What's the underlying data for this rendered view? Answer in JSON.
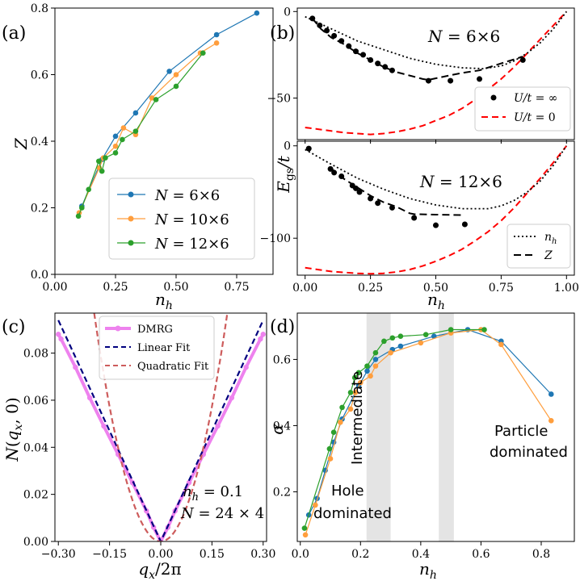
{
  "panel_labels": {
    "a": "(a)",
    "b": "(b)",
    "c": "(c)",
    "d": "(d)"
  },
  "colors": {
    "blue": "#1f77b4",
    "orange": "#ff9e3d",
    "green": "#2ca02c",
    "magenta": "#ee82ee",
    "navy": "#00007f",
    "indianred": "#cd5c5c",
    "red": "#ff0000",
    "shade": "#e4e4e4"
  },
  "chart_data": [
    {
      "id": "a",
      "type": "line",
      "xlabel": "n_h",
      "ylabel": "Z",
      "xlim": [
        0.0,
        0.9
      ],
      "ylim": [
        0.0,
        0.8
      ],
      "xticks": [
        "0.00",
        "0.25",
        "0.50",
        "0.75"
      ],
      "yticks": [
        "0.0",
        "0.2",
        "0.4",
        "0.6",
        "0.8"
      ],
      "legend_position": "lower-right",
      "series": [
        {
          "name": "N = 6×6",
          "color": "#1f77b4",
          "x": [
            0.111,
            0.194,
            0.25,
            0.333,
            0.472,
            0.667,
            0.833
          ],
          "y": [
            0.205,
            0.345,
            0.415,
            0.485,
            0.61,
            0.72,
            0.785
          ]
        },
        {
          "name": "N = 10×6",
          "color": "#ff9e3d",
          "x": [
            0.1,
            0.183,
            0.2,
            0.25,
            0.283,
            0.333,
            0.4,
            0.5,
            0.6,
            0.667
          ],
          "y": [
            0.185,
            0.32,
            0.35,
            0.385,
            0.44,
            0.42,
            0.53,
            0.6,
            0.665,
            0.695
          ]
        },
        {
          "name": "N = 12×6",
          "color": "#2ca02c",
          "x": [
            0.097,
            0.111,
            0.139,
            0.181,
            0.194,
            0.208,
            0.25,
            0.278,
            0.333,
            0.417,
            0.5,
            0.611
          ],
          "y": [
            0.175,
            0.2,
            0.255,
            0.34,
            0.31,
            0.35,
            0.365,
            0.405,
            0.43,
            0.525,
            0.565,
            0.665
          ]
        }
      ]
    },
    {
      "id": "b-top",
      "type": "line",
      "ylabel": "E_gs/t",
      "annotation": "N = 6×6",
      "xlim": [
        -0.03,
        1.03
      ],
      "ylim": [
        -74,
        2
      ],
      "yticks": [
        "0",
        "−50"
      ],
      "legend_position": "lower-right",
      "legend": [
        "U/t = ∞",
        "U/t = 0"
      ],
      "dmrg_points": {
        "x": [
          0.028,
          0.056,
          0.083,
          0.111,
          0.139,
          0.167,
          0.194,
          0.222,
          0.25,
          0.278,
          0.306,
          0.333,
          0.472,
          0.556,
          0.667,
          0.833
        ],
        "y": [
          -4,
          -8,
          -11,
          -14,
          -17,
          -20,
          -23,
          -25,
          -28,
          -30,
          -32,
          -34,
          -40,
          -40,
          -39,
          -28
        ]
      },
      "u_zero": {
        "x": [
          0.0,
          0.05,
          0.1,
          0.15,
          0.2,
          0.25,
          0.3,
          0.35,
          0.4,
          0.45,
          0.5,
          0.55,
          0.6,
          0.65,
          0.7,
          0.75,
          0.8,
          0.85,
          0.9,
          0.95,
          1.0
        ],
        "y": [
          -67,
          -68,
          -69,
          -70,
          -70.5,
          -71,
          -70.5,
          -69.5,
          -68,
          -66,
          -63,
          -60,
          -56,
          -51,
          -45,
          -39,
          -32,
          -24,
          -16,
          -8,
          0
        ]
      },
      "nh_curve": {
        "x": [
          0.0,
          0.1,
          0.2,
          0.3,
          0.4,
          0.5,
          0.6,
          0.68,
          0.75,
          0.8,
          0.85,
          0.9,
          0.95,
          1.0
        ],
        "y": [
          -3,
          -10,
          -17,
          -22,
          -27,
          -30.5,
          -32.5,
          -33,
          -31.5,
          -28.5,
          -24,
          -18,
          -10,
          0
        ]
      },
      "z_curve": {
        "x": [
          0.028,
          0.06,
          0.1,
          0.15,
          0.2,
          0.25,
          0.3,
          0.35,
          0.4,
          0.45,
          0.472,
          0.55,
          0.6,
          0.667,
          0.75,
          0.833
        ],
        "y": [
          -4,
          -10,
          -15,
          -19,
          -24,
          -28,
          -32,
          -35,
          -37,
          -39,
          -39.5,
          -37,
          -35.5,
          -34,
          -30,
          -26
        ]
      }
    },
    {
      "id": "b-bottom",
      "type": "line",
      "xlabel": "n_h",
      "annotation": "N = 12×6",
      "xlim": [
        -0.03,
        1.03
      ],
      "ylim": [
        -140,
        5
      ],
      "xticks": [
        "0.00",
        "0.25",
        "0.50",
        "0.75",
        "1.00"
      ],
      "yticks": [
        "0",
        "−100"
      ],
      "legend_position": "lower-right",
      "legend": [
        "n_h",
        "Z"
      ],
      "dmrg_points": {
        "x": [
          0.014,
          0.097,
          0.111,
          0.139,
          0.181,
          0.194,
          0.208,
          0.25,
          0.278,
          0.333,
          0.417,
          0.5,
          0.611
        ],
        "y": [
          -3,
          -25,
          -29,
          -33,
          -43,
          -46,
          -50,
          -57,
          -62,
          -67,
          -78,
          -86,
          -85
        ]
      },
      "u_zero": {
        "x": [
          0.0,
          0.05,
          0.1,
          0.15,
          0.2,
          0.25,
          0.3,
          0.35,
          0.4,
          0.45,
          0.5,
          0.55,
          0.6,
          0.65,
          0.7,
          0.75,
          0.8,
          0.85,
          0.9,
          0.95,
          1.0
        ],
        "y": [
          -132,
          -134,
          -136,
          -137,
          -138,
          -138.5,
          -138,
          -136.5,
          -134,
          -130,
          -125,
          -119,
          -112,
          -103,
          -93,
          -81,
          -67,
          -51,
          -35,
          -18,
          0
        ]
      },
      "nh_curve": {
        "x": [
          0.0,
          0.1,
          0.2,
          0.3,
          0.4,
          0.5,
          0.6,
          0.7,
          0.75,
          0.8,
          0.85,
          0.9,
          0.95,
          1.0
        ],
        "y": [
          -4,
          -20,
          -35,
          -47,
          -57,
          -64,
          -68,
          -68,
          -65,
          -59,
          -50,
          -38,
          -21,
          0
        ]
      },
      "z_curve": {
        "x": [
          0.097,
          0.15,
          0.2,
          0.25,
          0.3,
          0.35,
          0.4,
          0.417,
          0.5,
          0.611
        ],
        "y": [
          -24,
          -36,
          -45,
          -54,
          -61,
          -66,
          -73,
          -74,
          -74.5,
          -75
        ]
      }
    },
    {
      "id": "c",
      "type": "line",
      "xlabel": "q_x/2π",
      "ylabel": "N(q_x, 0)",
      "annotation": [
        "n_h = 0.1",
        "N = 24×4"
      ],
      "xlim": [
        -0.31,
        0.31
      ],
      "ylim": [
        0.0,
        0.097
      ],
      "xticks": [
        "−0.30",
        "−0.15",
        "0.00",
        "0.15",
        "0.30"
      ],
      "yticks": [
        "0.00",
        "0.02",
        "0.04",
        "0.06",
        "0.08"
      ],
      "legend_position": "upper-center",
      "series": [
        {
          "name": "DMRG",
          "color": "#ee82ee",
          "x": [
            -0.3,
            -0.292,
            -0.25,
            -0.208,
            -0.167,
            -0.125,
            -0.083,
            -0.042,
            -0.021,
            0.0,
            0.021,
            0.042,
            0.083,
            0.125,
            0.167,
            0.208,
            0.25,
            0.292,
            0.3
          ],
          "y": [
            0.088,
            0.086,
            0.074,
            0.061,
            0.049,
            0.037,
            0.025,
            0.013,
            0.006,
            0.0,
            0.006,
            0.013,
            0.025,
            0.037,
            0.049,
            0.061,
            0.074,
            0.086,
            0.088
          ]
        },
        {
          "name": "Linear Fit",
          "color": "#00007f",
          "x": [
            -0.3,
            0.0,
            0.3
          ],
          "y": [
            0.094,
            0.0,
            0.094
          ]
        },
        {
          "name": "Quadratic Fit",
          "color": "#cd5c5c",
          "x": [
            -0.195,
            -0.15,
            -0.1,
            -0.05,
            0.0,
            0.05,
            0.1,
            0.15,
            0.195
          ],
          "y": [
            0.097,
            0.057,
            0.025,
            0.0064,
            0.0,
            0.0064,
            0.025,
            0.057,
            0.097
          ]
        }
      ]
    },
    {
      "id": "d",
      "type": "line",
      "xlabel": "n_h",
      "ylabel": "α",
      "xlim": [
        -0.01,
        0.91
      ],
      "ylim": [
        0.05,
        0.74
      ],
      "xticks": [
        "0.0",
        "0.2",
        "0.4",
        "0.6",
        "0.8"
      ],
      "yticks": [
        "0.2",
        "0.4",
        "0.6"
      ],
      "shaded_regions": [
        [
          0.22,
          0.3
        ],
        [
          0.46,
          0.51
        ]
      ],
      "region_labels": {
        "hole": [
          "Hole",
          "dominated"
        ],
        "intermediate": "Intermediate",
        "particle": [
          "Particle",
          "dominated"
        ]
      },
      "series": [
        {
          "name": "N = 6×6",
          "color": "#1f77b4",
          "x": [
            0.028,
            0.056,
            0.083,
            0.111,
            0.139,
            0.194,
            0.222,
            0.25,
            0.306,
            0.333,
            0.444,
            0.556,
            0.667,
            0.833
          ],
          "y": [
            0.13,
            0.18,
            0.265,
            0.35,
            0.42,
            0.52,
            0.565,
            0.6,
            0.63,
            0.64,
            0.67,
            0.69,
            0.655,
            0.495
          ]
        },
        {
          "name": "N = 10×6",
          "color": "#ff9e3d",
          "x": [
            0.017,
            0.05,
            0.1,
            0.133,
            0.167,
            0.183,
            0.2,
            0.233,
            0.25,
            0.3,
            0.4,
            0.5,
            0.6,
            0.667,
            0.833
          ],
          "y": [
            0.07,
            0.16,
            0.3,
            0.41,
            0.45,
            0.5,
            0.53,
            0.55,
            0.58,
            0.62,
            0.65,
            0.68,
            0.69,
            0.645,
            0.415
          ]
        },
        {
          "name": "N = 12×6",
          "color": "#2ca02c",
          "x": [
            0.014,
            0.097,
            0.111,
            0.139,
            0.167,
            0.181,
            0.194,
            0.222,
            0.25,
            0.278,
            0.306,
            0.333,
            0.417,
            0.5,
            0.611
          ],
          "y": [
            0.09,
            0.33,
            0.38,
            0.455,
            0.5,
            0.545,
            0.56,
            0.58,
            0.62,
            0.655,
            0.665,
            0.67,
            0.675,
            0.69,
            0.69
          ]
        }
      ]
    }
  ]
}
